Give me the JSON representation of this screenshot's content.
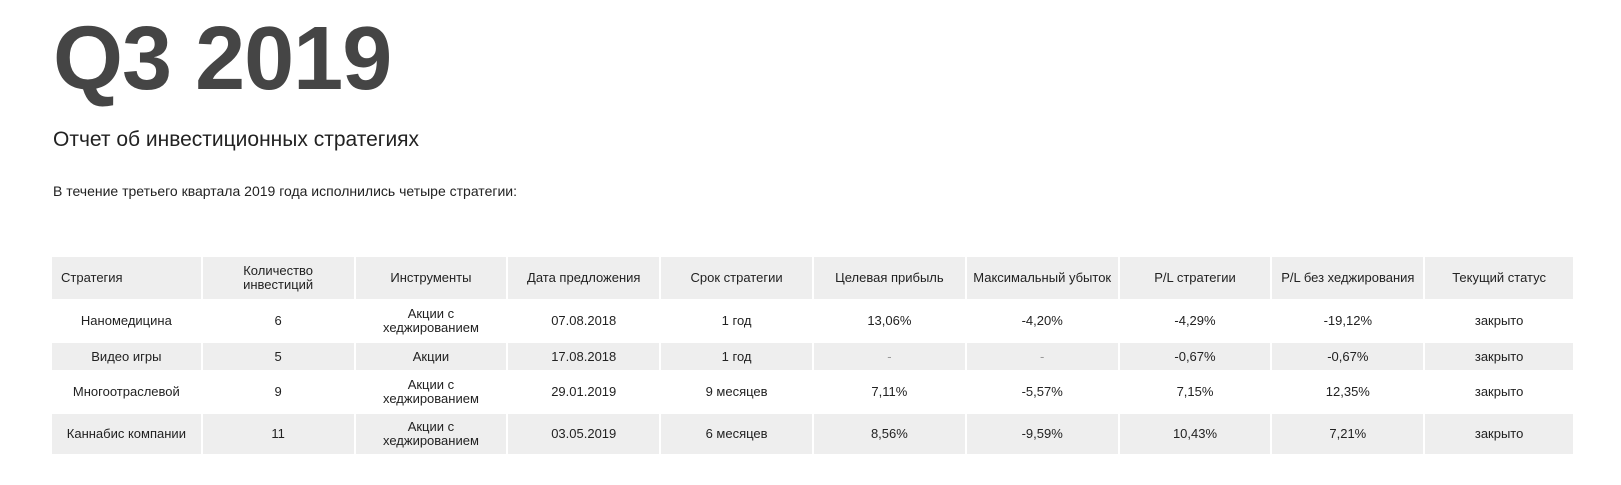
{
  "headline": "Q3 2019",
  "subtitle": "Отчет об инвестиционных стратегиях",
  "intro": "В течение третьего квартала 2019 года исполнились четыре стратегии:",
  "table": {
    "headers": [
      "Стратегия",
      "Количество инвестиций",
      "Инструменты",
      "Дата предложения",
      "Срок стратегии",
      "Целевая прибыль",
      "Максимальный убыток",
      "P/L стратегии",
      "P/L без хеджирования",
      "Текущий статус"
    ],
    "rows": [
      [
        "Наномедицина",
        "6",
        "Акции с хеджированием",
        "07.08.2018",
        "1 год",
        "13,06%",
        "-4,20%",
        "-4,29%",
        "-19,12%",
        "закрыто"
      ],
      [
        "Видео игры",
        "5",
        "Акции",
        "17.08.2018",
        "1 год",
        "-",
        "-",
        "-0,67%",
        "-0,67%",
        "закрыто"
      ],
      [
        "Многоотраслевой",
        "9",
        "Акции с хеджированием",
        "29.01.2019",
        "9 месяцев",
        "7,11%",
        "-5,57%",
        "7,15%",
        "12,35%",
        "закрыто"
      ],
      [
        "Каннабис компании",
        "11",
        "Акции с хеджированием",
        "03.05.2019",
        "6 месяцев",
        "8,56%",
        "-9,59%",
        "10,43%",
        "7,21%",
        "закрыто"
      ]
    ]
  }
}
